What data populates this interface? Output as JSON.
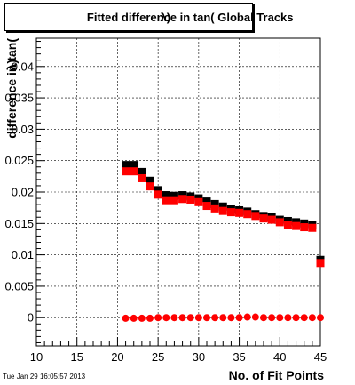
{
  "timestamp": "Tue Jan 29 16:05:57 2013",
  "chart_data": {
    "type": "scatter",
    "title": "Fitted difference in tan( Global Tracks",
    "title_overlay": "λ)",
    "xlabel": "No. of Fit Points",
    "ylabel": "difference in tan(",
    "ylabel_overlay": "λ)",
    "xlim": [
      10,
      45
    ],
    "ylim": [
      -0.0045,
      0.0445
    ],
    "xticks": [
      10,
      15,
      20,
      25,
      30,
      35,
      40,
      45
    ],
    "yticks": [
      0,
      0.005,
      0.01,
      0.015,
      0.02,
      0.025,
      0.03,
      0.035,
      0.04
    ],
    "ytick_labels": [
      "0",
      "0.005",
      "0.01",
      "0.015",
      "0.02",
      "0.025",
      "0.03",
      "0.035",
      "0.04"
    ],
    "grid": true,
    "colors": {
      "black": "#000000",
      "red": "#ff0000"
    },
    "series": [
      {
        "marker": "square",
        "color": "#000000",
        "x": [
          21,
          22,
          23,
          24,
          25,
          26,
          27,
          28,
          29,
          30,
          31,
          32,
          33,
          34,
          35,
          36,
          37,
          38,
          39,
          40,
          41,
          42,
          43,
          44,
          45
        ],
        "y": [
          0.0243,
          0.0243,
          0.0232,
          0.0218,
          0.0203,
          0.0195,
          0.0194,
          0.0195,
          0.0193,
          0.019,
          0.0185,
          0.0181,
          0.0177,
          0.0173,
          0.0171,
          0.0169,
          0.0165,
          0.0162,
          0.016,
          0.0156,
          0.0154,
          0.0152,
          0.015,
          0.0148,
          0.0092
        ]
      },
      {
        "marker": "square",
        "color": "#ff0000",
        "x": [
          21,
          22,
          23,
          24,
          25,
          26,
          27,
          28,
          29,
          30,
          31,
          32,
          33,
          34,
          35,
          36,
          37,
          38,
          39,
          40,
          41,
          42,
          43,
          44,
          45
        ],
        "y": [
          0.0233,
          0.0233,
          0.0222,
          0.0209,
          0.0196,
          0.0187,
          0.0187,
          0.0189,
          0.0188,
          0.0184,
          0.0178,
          0.0174,
          0.017,
          0.0168,
          0.0167,
          0.0165,
          0.0162,
          0.0158,
          0.0156,
          0.0152,
          0.0148,
          0.0146,
          0.0144,
          0.0143,
          0.0087
        ]
      },
      {
        "marker": "circle",
        "color": "#ff0000",
        "x": [
          21,
          22,
          23,
          24,
          25,
          26,
          27,
          28,
          29,
          30,
          31,
          32,
          33,
          34,
          35,
          36,
          37,
          38,
          39,
          40,
          41,
          42,
          43,
          44,
          45
        ],
        "y": [
          -0.0001,
          -0.0001,
          -0.0001,
          -0.0001,
          0.0,
          0.0,
          0.0,
          0.0,
          0.0,
          0.0,
          0.0,
          0.0,
          0.0,
          0.0,
          0.0,
          0.0001,
          0.0001,
          0.0,
          0.0,
          0.0,
          0.0,
          0.0,
          0.0,
          0.0,
          0.0
        ]
      }
    ]
  }
}
